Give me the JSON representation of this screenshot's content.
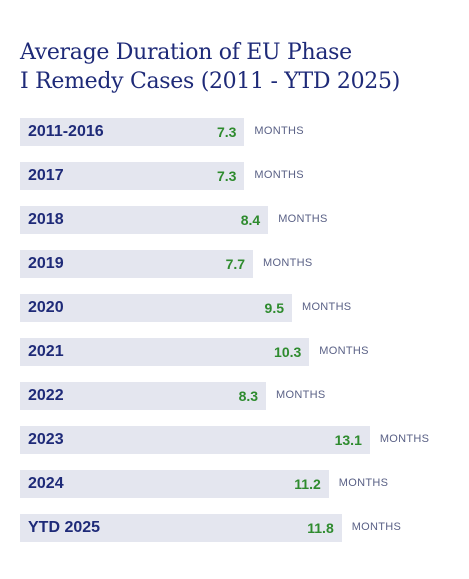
{
  "title_line1": "Average Duration of EU Phase",
  "title_line2": "I Remedy Cases (2011 - YTD 2025)",
  "colors": {
    "title": "#1e2a78",
    "bar": "#e4e6ef",
    "category": "#1e2a78",
    "value": "#2e8b2e",
    "unit": "#5a6186"
  },
  "chart_data": {
    "type": "bar",
    "orientation": "horizontal",
    "title": "Average Duration of EU Phase I Remedy Cases (2011 - YTD 2025)",
    "unit_label": "MONTHS",
    "categories": [
      "2011-2016",
      "2017",
      "2018",
      "2019",
      "2020",
      "2021",
      "2022",
      "2023",
      "2024",
      "YTD 2025"
    ],
    "values": [
      7.3,
      7.3,
      8.4,
      7.7,
      9.5,
      10.3,
      8.3,
      13.1,
      11.2,
      11.8
    ],
    "value_labels": [
      "7.3",
      "7.3",
      "8.4",
      "7.7",
      "9.5",
      "10.3",
      "8.3",
      "13.1",
      "11.2",
      "11.8"
    ],
    "xlim": [
      0,
      13.1
    ],
    "grid": false,
    "legend": "none"
  }
}
